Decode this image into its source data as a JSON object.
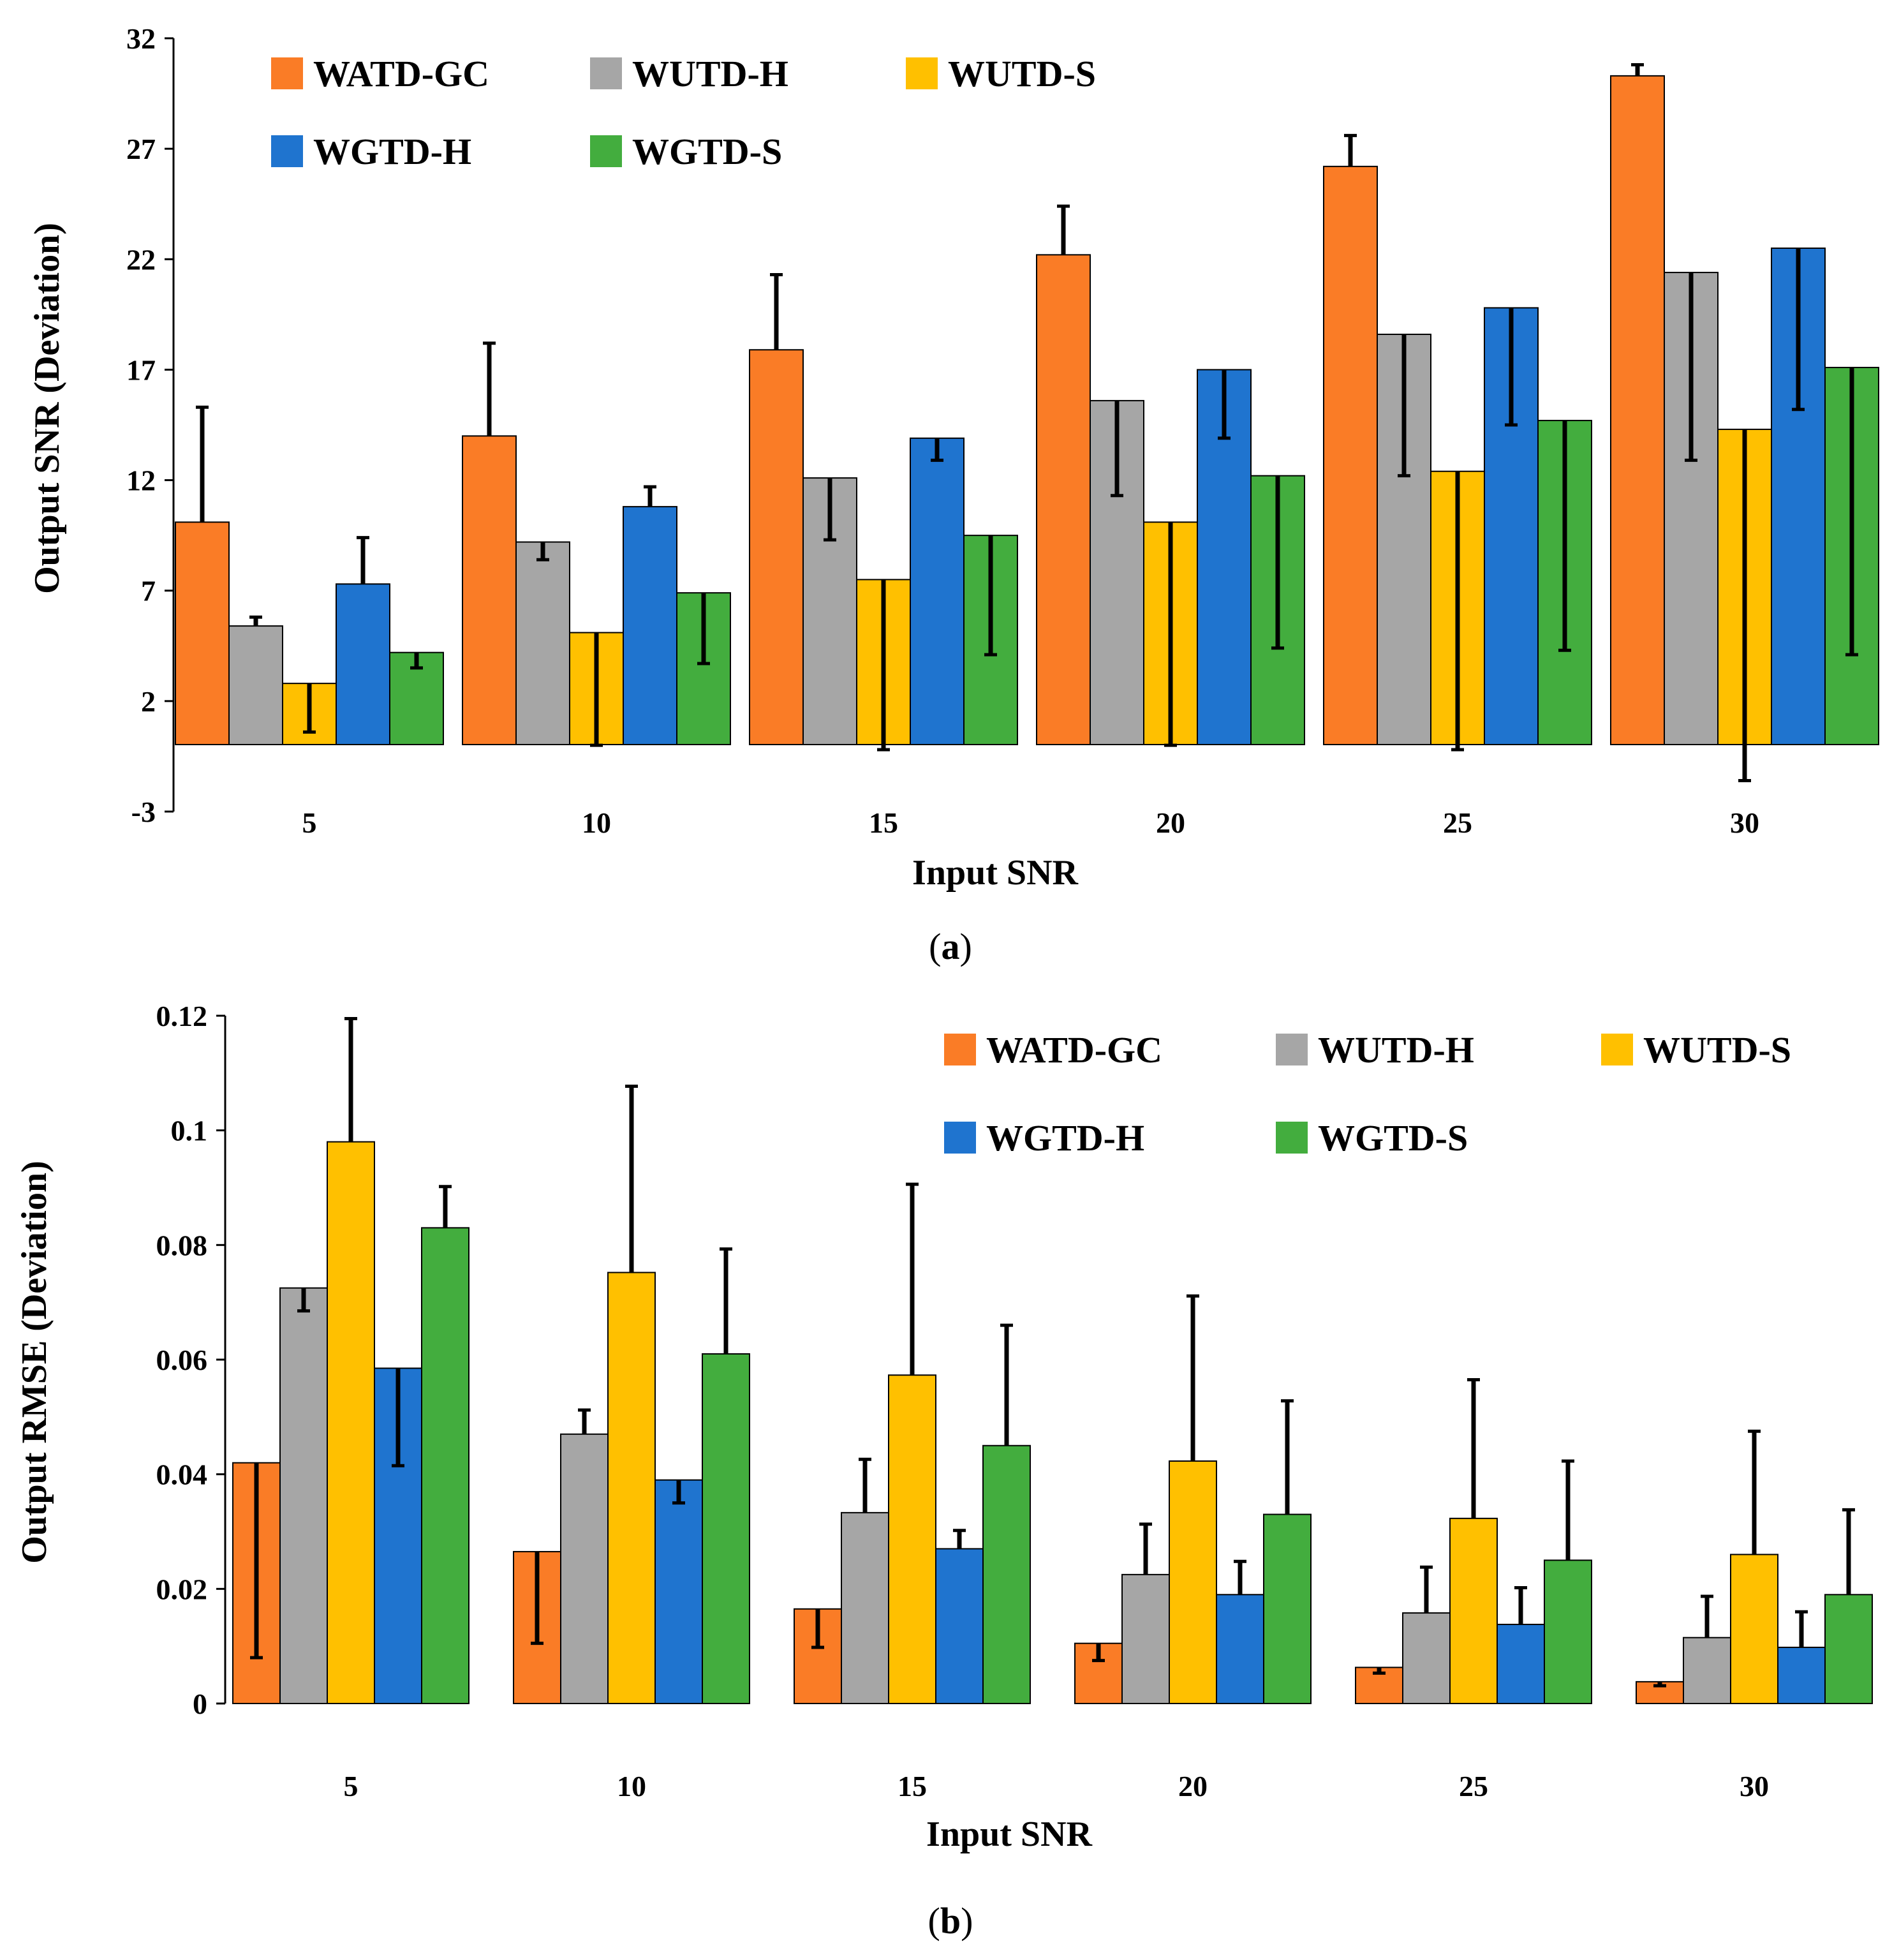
{
  "chart_data": [
    {
      "type": "bar",
      "panel_label": "a",
      "xlabel": "Input SNR",
      "ylabel": "Output SNR (Deviation)",
      "ylim": [
        -3,
        32
      ],
      "yticks": [
        "-3",
        "2",
        "7",
        "12",
        "17",
        "22",
        "27",
        "32"
      ],
      "yticks_values": [
        -3,
        2,
        7,
        12,
        17,
        22,
        27,
        32
      ],
      "categories": [
        "5",
        "10",
        "15",
        "20",
        "25",
        "30"
      ],
      "legend_position": "top-left",
      "series": [
        {
          "name": "WATD-GC",
          "color": "#fa7c26",
          "values": [
            10.1,
            14.0,
            17.9,
            22.2,
            26.2,
            30.3
          ],
          "err_lo": [
            0,
            0,
            0,
            0,
            0,
            0
          ],
          "err_hi": [
            5.2,
            4.2,
            3.4,
            2.2,
            1.4,
            0.5
          ]
        },
        {
          "name": "WUTD-H",
          "color": "#a6a6a6",
          "values": [
            5.4,
            9.2,
            12.1,
            15.6,
            18.6,
            21.4
          ],
          "err_lo": [
            0,
            0.8,
            2.8,
            4.3,
            6.4,
            8.5
          ],
          "err_hi": [
            0.4,
            0,
            0,
            0,
            0,
            0
          ]
        },
        {
          "name": "WUTD-S",
          "color": "#ffc000",
          "values": [
            2.8,
            5.1,
            7.5,
            10.1,
            12.4,
            14.3
          ],
          "err_lo": [
            2.2,
            5.1,
            7.7,
            10.1,
            12.6,
            15.9
          ],
          "err_hi": [
            0,
            0,
            0,
            0,
            0,
            0
          ]
        },
        {
          "name": "WGTD-H",
          "color": "#1f74cf",
          "values": [
            7.3,
            10.8,
            13.9,
            17.0,
            19.8,
            22.5
          ],
          "err_lo": [
            0,
            0,
            1.0,
            3.1,
            5.3,
            7.3
          ],
          "err_hi": [
            2.1,
            0.9,
            0,
            0,
            0,
            0
          ]
        },
        {
          "name": "WGTD-S",
          "color": "#43ad3e",
          "values": [
            4.2,
            6.9,
            9.5,
            12.2,
            14.7,
            17.1
          ],
          "err_lo": [
            0.7,
            3.2,
            5.4,
            7.8,
            10.4,
            13.0
          ],
          "err_hi": [
            0,
            0,
            0,
            0,
            0,
            0
          ]
        }
      ]
    },
    {
      "type": "bar",
      "panel_label": "b",
      "xlabel": "Input SNR",
      "ylabel": "Output RMSE (Deviation)",
      "ylim": [
        0,
        0.12
      ],
      "yticks": [
        "0",
        "0.02",
        "0.04",
        "0.06",
        "0.08",
        "0.1",
        "0.12"
      ],
      "yticks_values": [
        0,
        0.02,
        0.04,
        0.06,
        0.08,
        0.1,
        0.12
      ],
      "categories": [
        "5",
        "10",
        "15",
        "20",
        "25",
        "30"
      ],
      "legend_position": "top-right",
      "series": [
        {
          "name": "WATD-GC",
          "color": "#fa7c26",
          "values": [
            0.042,
            0.0265,
            0.0165,
            0.0105,
            0.0063,
            0.0038
          ],
          "err_lo": [
            0.034,
            0.016,
            0.0067,
            0.003,
            0.001,
            0.0007
          ],
          "err_hi": [
            0,
            0,
            0,
            0,
            0,
            0
          ]
        },
        {
          "name": "WUTD-H",
          "color": "#a6a6a6",
          "values": [
            0.0725,
            0.047,
            0.0333,
            0.0225,
            0.0158,
            0.0115
          ],
          "err_lo": [
            0.004,
            0,
            0,
            0,
            0,
            0
          ],
          "err_hi": [
            0,
            0.0042,
            0.0093,
            0.0088,
            0.008,
            0.0072
          ]
        },
        {
          "name": "WUTD-S",
          "color": "#ffc000",
          "values": [
            0.098,
            0.0752,
            0.0573,
            0.0423,
            0.0323,
            0.026
          ],
          "err_lo": [
            0,
            0,
            0,
            0,
            0,
            0
          ],
          "err_hi": [
            0.0215,
            0.0325,
            0.0333,
            0.0288,
            0.0242,
            0.0215
          ]
        },
        {
          "name": "WGTD-H",
          "color": "#1f74cf",
          "values": [
            0.0585,
            0.039,
            0.027,
            0.019,
            0.0138,
            0.0098
          ],
          "err_lo": [
            0.017,
            0.004,
            0,
            0,
            0,
            0
          ],
          "err_hi": [
            0,
            0,
            0.0032,
            0.0058,
            0.0064,
            0.0062
          ]
        },
        {
          "name": "WGTD-S",
          "color": "#43ad3e",
          "values": [
            0.083,
            0.061,
            0.045,
            0.033,
            0.025,
            0.019
          ],
          "err_lo": [
            0,
            0,
            0,
            0,
            0,
            0
          ],
          "err_hi": [
            0.0072,
            0.0183,
            0.021,
            0.0198,
            0.0173,
            0.0148
          ]
        }
      ]
    }
  ]
}
